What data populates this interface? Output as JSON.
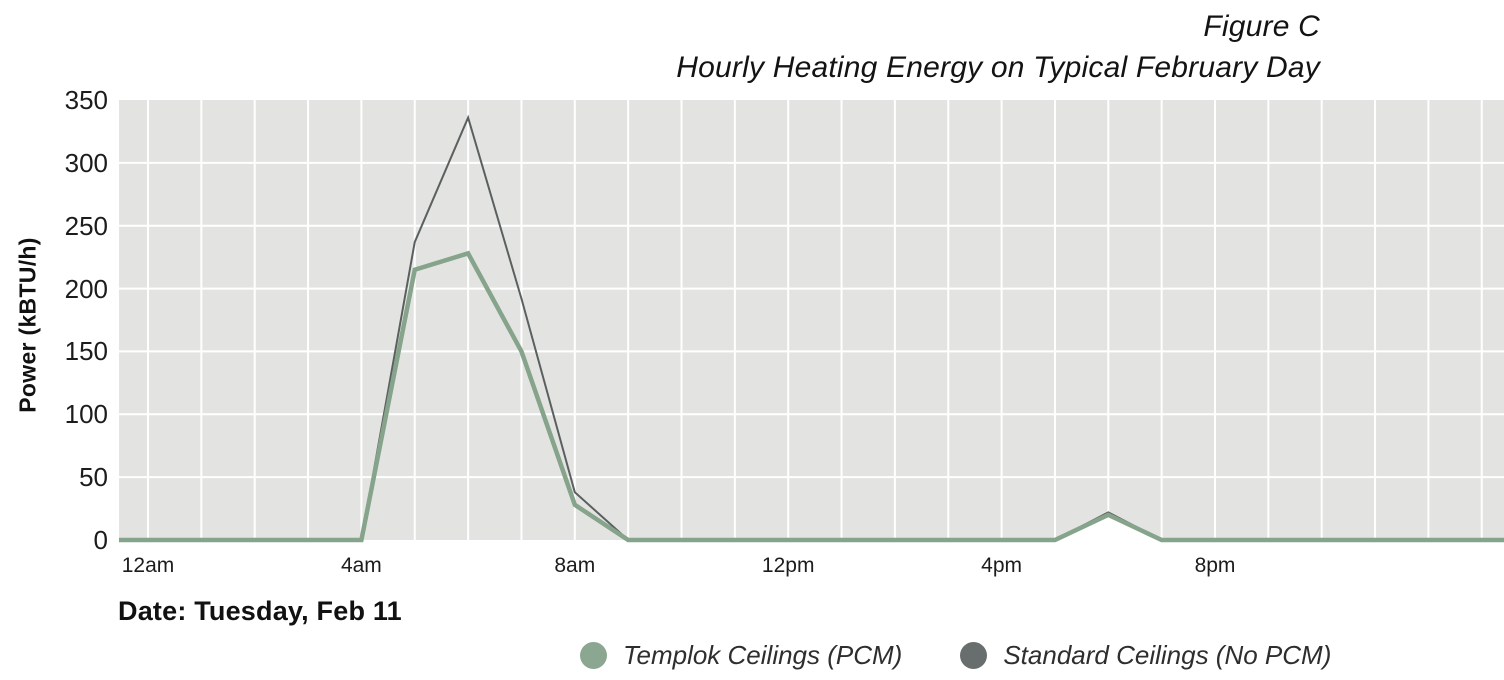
{
  "figure_label": "Figure C",
  "title": "Hourly Heating Energy on Typical February Day",
  "date_note": "Date: Tuesday, Feb 11",
  "y_axis_title": "Power (kBTU/h)",
  "legend": [
    {
      "label": "Templok Ceilings (PCM)",
      "color": "#8ca791"
    },
    {
      "label": "Standard Ceilings (No PCM)",
      "color": "#686e6e"
    }
  ],
  "colors": {
    "plot_background": "#e3e4e1",
    "gridline": "#ffffff",
    "templok_line": "#86a38b",
    "standard_line": "#5a6060"
  },
  "chart_data": {
    "type": "line",
    "xlabel": "",
    "ylabel": "Power (kBTU/h)",
    "ylim": [
      0,
      350
    ],
    "grid": "white hourly vertical and 50-step horizontal gridlines on light gray panel",
    "legend_position": "bottom",
    "x_hours": [
      0,
      1,
      2,
      3,
      4,
      5,
      6,
      7,
      8,
      9,
      10,
      11,
      12,
      13,
      14,
      15,
      16,
      17,
      18,
      19,
      20,
      21,
      22,
      23
    ],
    "x_tick_hours": [
      0,
      4,
      8,
      12,
      16,
      20
    ],
    "x_tick_labels": [
      "12am",
      "4am",
      "8am",
      "12pm",
      "4pm",
      "8pm"
    ],
    "y_ticks": [
      350,
      300,
      250,
      200,
      150,
      100,
      50,
      0
    ],
    "series": [
      {
        "name": "Standard Ceilings (No PCM)",
        "color": "#5a6060",
        "stroke_width": 2,
        "values": [
          0,
          0,
          0,
          0,
          0,
          237,
          336,
          192,
          38,
          0,
          0,
          0,
          0,
          0,
          0,
          0,
          0,
          0,
          22,
          0,
          0,
          0,
          0,
          0
        ]
      },
      {
        "name": "Templok Ceilings (PCM)",
        "color": "#86a38b",
        "stroke_width": 4.5,
        "values": [
          0,
          0,
          0,
          0,
          0,
          215,
          228,
          150,
          28,
          0,
          0,
          0,
          0,
          0,
          0,
          0,
          0,
          0,
          20,
          0,
          0,
          0,
          0,
          0
        ]
      }
    ]
  }
}
